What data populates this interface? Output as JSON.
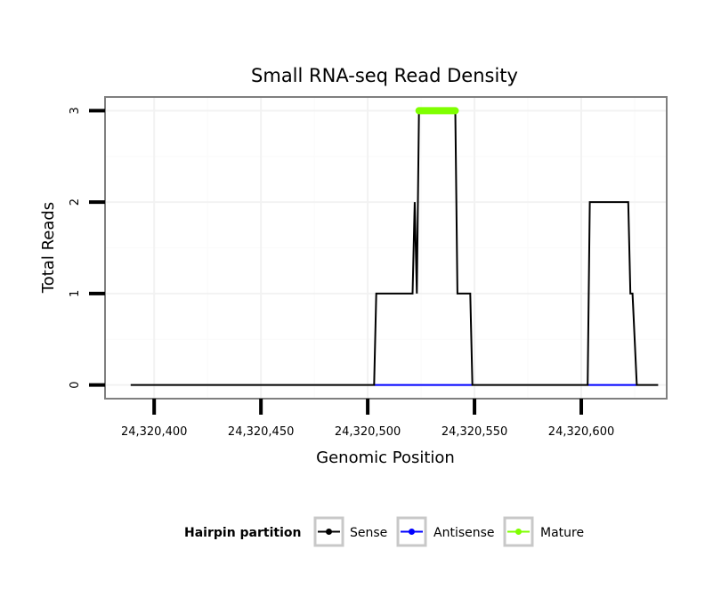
{
  "chart_data": {
    "type": "line",
    "title": "Small RNA-seq Read Density",
    "xlabel": "Genomic Position",
    "ylabel": "Total Reads",
    "xlim": [
      24320377,
      24320640
    ],
    "ylim": [
      -0.15,
      3.15
    ],
    "x_ticks": [
      24320400,
      24320450,
      24320500,
      24320550,
      24320600
    ],
    "x_tick_labels": [
      "24,320,400",
      "24,320,450",
      "24,320,500",
      "24,320,550",
      "24,320,600"
    ],
    "y_ticks": [
      0,
      1,
      2,
      3
    ],
    "y_tick_labels": [
      "0",
      "1",
      "2",
      "3"
    ],
    "grid": true,
    "legend": {
      "title": "Hairpin partition",
      "position": "bottom",
      "entries": [
        "Sense",
        "Antisense",
        "Mature"
      ]
    },
    "series": [
      {
        "name": "Sense",
        "color": "#000000",
        "x": [
          24320389,
          24320503,
          24320504,
          24320521,
          24320522,
          24320523,
          24320524,
          24320541,
          24320542,
          24320548,
          24320549,
          24320603,
          24320604,
          24320622,
          24320623,
          24320624,
          24320626,
          24320636
        ],
        "y": [
          0,
          0,
          1,
          1,
          2,
          1,
          3,
          3,
          1,
          1,
          0,
          0,
          2,
          2,
          1,
          1,
          0,
          0
        ]
      },
      {
        "name": "Antisense",
        "color": "#0000ff",
        "x": [
          24320503,
          24320549,
          24320603,
          24320626
        ],
        "y": [
          0,
          0,
          0,
          0
        ],
        "segments": [
          [
            0,
            1
          ],
          [
            2,
            3
          ]
        ]
      },
      {
        "name": "Mature",
        "color": "#7fff00",
        "x": [
          24320524,
          24320541
        ],
        "y": [
          3,
          3
        ]
      }
    ]
  }
}
